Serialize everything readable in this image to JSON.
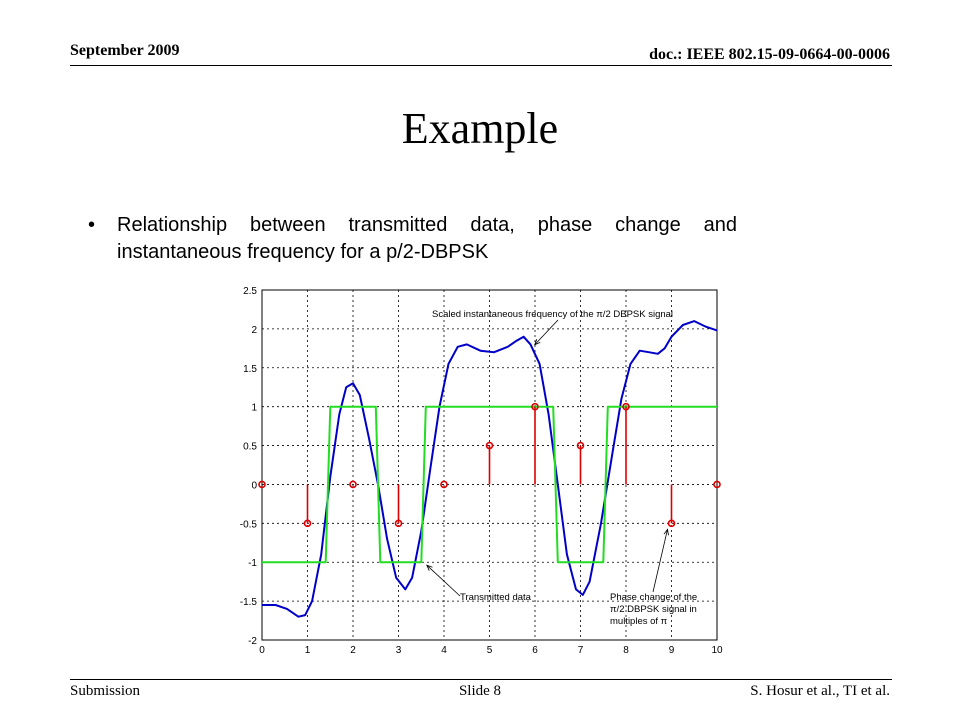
{
  "header": {
    "date": "September 2009",
    "doc_id": "doc.: IEEE 802.15-09-0664-00-0006"
  },
  "slide": {
    "title": "Example",
    "bullet_glyph": "•",
    "bullet_text": "Relationship between transmitted data, phase change and instantaneous frequency for a p/2-DBPSK"
  },
  "footer": {
    "left": "Submission",
    "center": "Slide 8",
    "right": "S. Hosur et al., TI et al."
  },
  "colors": {
    "frequency": "#0000c8",
    "data": "#22dd22",
    "stem": "#dd0000",
    "grid": "#000000"
  },
  "chart_data": {
    "type": "line",
    "xlim": [
      0,
      10
    ],
    "ylim": [
      -2,
      2.5
    ],
    "x_ticks": [
      "0",
      "1",
      "2",
      "3",
      "4",
      "5",
      "6",
      "7",
      "8",
      "9",
      "10"
    ],
    "y_ticks": [
      "-2",
      "-1.5",
      "-1",
      "-0.5",
      "0",
      "0.5",
      "1",
      "1.5",
      "2",
      "2.5"
    ],
    "grid": true,
    "series": [
      {
        "kind": "line",
        "color": "#0000c8",
        "points": [
          [
            0,
            -1.55
          ],
          [
            0.3,
            -1.55
          ],
          [
            0.55,
            -1.6
          ],
          [
            0.8,
            -1.7
          ],
          [
            0.95,
            -1.68
          ],
          [
            1.1,
            -1.5
          ],
          [
            1.3,
            -0.9
          ],
          [
            1.5,
            0.1
          ],
          [
            1.7,
            0.9
          ],
          [
            1.85,
            1.25
          ],
          [
            2.0,
            1.3
          ],
          [
            2.15,
            1.15
          ],
          [
            2.35,
            0.6
          ],
          [
            2.55,
            0.0
          ],
          [
            2.75,
            -0.7
          ],
          [
            2.95,
            -1.2
          ],
          [
            3.15,
            -1.35
          ],
          [
            3.3,
            -1.2
          ],
          [
            3.5,
            -0.6
          ],
          [
            3.7,
            0.2
          ],
          [
            3.9,
            1.0
          ],
          [
            4.1,
            1.55
          ],
          [
            4.3,
            1.77
          ],
          [
            4.5,
            1.8
          ],
          [
            4.8,
            1.72
          ],
          [
            5.1,
            1.7
          ],
          [
            5.4,
            1.77
          ],
          [
            5.6,
            1.85
          ],
          [
            5.75,
            1.9
          ],
          [
            5.9,
            1.8
          ],
          [
            6.1,
            1.55
          ],
          [
            6.3,
            0.9
          ],
          [
            6.5,
            0.0
          ],
          [
            6.7,
            -0.9
          ],
          [
            6.9,
            -1.35
          ],
          [
            7.05,
            -1.42
          ],
          [
            7.2,
            -1.25
          ],
          [
            7.45,
            -0.5
          ],
          [
            7.7,
            0.4
          ],
          [
            7.9,
            1.1
          ],
          [
            8.1,
            1.55
          ],
          [
            8.3,
            1.72
          ],
          [
            8.5,
            1.7
          ],
          [
            8.7,
            1.68
          ],
          [
            8.85,
            1.75
          ],
          [
            9.0,
            1.9
          ],
          [
            9.25,
            2.05
          ],
          [
            9.5,
            2.1
          ],
          [
            9.75,
            2.03
          ],
          [
            10,
            1.98
          ]
        ]
      },
      {
        "kind": "step",
        "color": "#22dd22",
        "points": [
          [
            0,
            -1
          ],
          [
            1.4,
            -1
          ],
          [
            1.5,
            1
          ],
          [
            2.5,
            1
          ],
          [
            2.6,
            -1
          ],
          [
            3.5,
            -1
          ],
          [
            3.6,
            1
          ],
          [
            6.4,
            1
          ],
          [
            6.5,
            -1
          ],
          [
            7.5,
            -1
          ],
          [
            7.6,
            1
          ],
          [
            10,
            1
          ]
        ]
      },
      {
        "kind": "stem",
        "color": "#dd0000",
        "x": [
          0,
          1,
          2,
          3,
          4,
          5,
          6,
          7,
          8,
          9,
          10
        ],
        "y": [
          0,
          -0.5,
          0,
          -0.5,
          0,
          0.5,
          1,
          0.5,
          1,
          -0.5,
          0
        ]
      }
    ],
    "annotations": [
      {
        "text": "Scaled instantaneous frequency of the π/2 DBPSK signal",
        "anchor": [
          5.95,
          1.77
        ]
      },
      {
        "text": "Transmitted data",
        "anchor": [
          3.6,
          -1.0
        ]
      },
      {
        "text": "Phase change of the",
        "anchor": [
          9.0,
          -0.5
        ]
      },
      {
        "text": "π/2 DBPSK signal in",
        "anchor": null
      },
      {
        "text": "multiples of π",
        "anchor": null
      }
    ]
  }
}
